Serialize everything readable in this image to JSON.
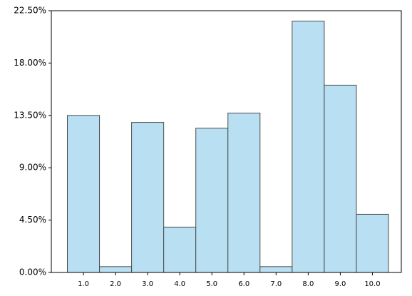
{
  "chart_data": {
    "type": "histogram",
    "bins": [
      0.5,
      1.5,
      2.5,
      3.5,
      4.5,
      5.5,
      6.5,
      7.5,
      8.5,
      9.5,
      10.5
    ],
    "values": [
      13.5,
      0.5,
      12.9,
      3.9,
      12.4,
      13.7,
      0.5,
      21.6,
      16.1,
      5.0
    ],
    "color": "#b8dff2",
    "edge_color": "#4a4a4a",
    "xlim": [
      0,
      10.9
    ],
    "ylim": [
      0,
      22.5
    ],
    "xticks": [
      {
        "value": 1,
        "label": "1.0"
      },
      {
        "value": 2,
        "label": "2.0"
      },
      {
        "value": 3,
        "label": "3.0"
      },
      {
        "value": 4,
        "label": "4.0"
      },
      {
        "value": 5,
        "label": "5.0"
      },
      {
        "value": 6,
        "label": "6.0"
      },
      {
        "value": 7,
        "label": "7.0"
      },
      {
        "value": 8,
        "label": "8.0"
      },
      {
        "value": 9,
        "label": "9.0"
      },
      {
        "value": 10,
        "label": "10.0"
      }
    ],
    "yticks": [
      {
        "value": 0,
        "label": "0.00%"
      },
      {
        "value": 4.5,
        "label": "4.50%"
      },
      {
        "value": 9,
        "label": "9.00%"
      },
      {
        "value": 13.5,
        "label": "13.50%"
      },
      {
        "value": 18,
        "label": "18.00%"
      },
      {
        "value": 22.5,
        "label": "22.50%"
      }
    ]
  }
}
